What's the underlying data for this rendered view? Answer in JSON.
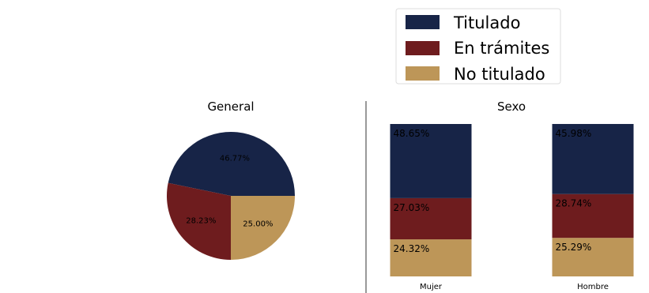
{
  "colors": {
    "titulado": "#172447",
    "en_tramites": "#6e1c1e",
    "no_titulado": "#bd9658"
  },
  "legend": [
    {
      "label": "Titulado",
      "color": "#172447"
    },
    {
      "label": "En trámites",
      "color": "#6e1c1e"
    },
    {
      "label": "No titulado",
      "color": "#bd9658"
    }
  ],
  "chart_data": [
    {
      "type": "pie",
      "title": "General",
      "labels": [
        "Titulado",
        "En trámites",
        "No titulado"
      ],
      "values": [
        46.77,
        28.23,
        25.0
      ],
      "value_labels": [
        "46.77%",
        "28.23%",
        "25.00%"
      ]
    },
    {
      "type": "bar",
      "stacked": true,
      "normalized": true,
      "title": "Sexo",
      "categories": [
        "Mujer",
        "Hombre"
      ],
      "series": [
        {
          "name": "Titulado",
          "values": [
            48.65,
            45.98
          ],
          "value_labels": [
            "48.65%",
            "45.98%"
          ]
        },
        {
          "name": "En trámites",
          "values": [
            27.03,
            28.74
          ],
          "value_labels": [
            "27.03%",
            "28.74%"
          ]
        },
        {
          "name": "No titulado",
          "values": [
            24.32,
            25.29
          ],
          "value_labels": [
            "24.32%",
            "25.29%"
          ]
        }
      ],
      "ylim": [
        0,
        100
      ],
      "grid": false
    }
  ]
}
